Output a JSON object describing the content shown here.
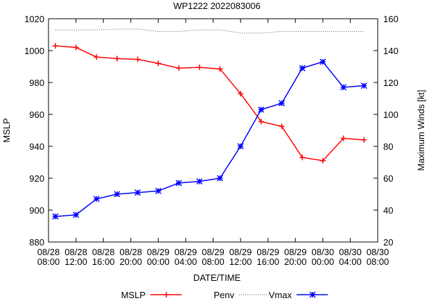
{
  "chart_data": {
    "type": "line",
    "title": "WP1222 2022083006",
    "x_label": "DATE/TIME",
    "y_label": "MSLP",
    "y2_label": "Maximum Winds [kt]",
    "x": [
      "08/28 09:00",
      "08/28 12:00",
      "08/28 15:00",
      "08/28 18:00",
      "08/28 21:00",
      "08/29 00:00",
      "08/29 03:00",
      "08/29 06:00",
      "08/29 09:00",
      "08/29 12:00",
      "08/29 15:00",
      "08/29 18:00",
      "08/29 21:00",
      "08/30 00:00",
      "08/30 03:00",
      "08/30 06:00"
    ],
    "xlim": [
      "08/28 08:00",
      "08/30 08:00"
    ],
    "xticks": [
      "08/28 08:00",
      "08/28 12:00",
      "08/28 16:00",
      "08/28 20:00",
      "08/29 00:00",
      "08/29 04:00",
      "08/29 08:00",
      "08/29 12:00",
      "08/29 16:00",
      "08/29 20:00",
      "08/30 00:00",
      "08/30 04:00",
      "08/30 08:00"
    ],
    "ylim": [
      880,
      1020
    ],
    "yticks": [
      880,
      900,
      920,
      940,
      960,
      980,
      1000,
      1020
    ],
    "y2lim": [
      20,
      160
    ],
    "y2ticks": [
      20,
      40,
      60,
      80,
      100,
      120,
      140,
      160
    ],
    "series": [
      {
        "name": "MSLP",
        "color": "#ff0000",
        "marker": "plus",
        "values": [
          1003,
          1002,
          996,
          995,
          994.5,
          992,
          989,
          989.5,
          988.5,
          973,
          955.5,
          952.5,
          933,
          931,
          945,
          944
        ]
      },
      {
        "name": "Penv",
        "color": "#555555",
        "dashed": true,
        "values": [
          1013,
          1013,
          1013,
          1013.5,
          1013.5,
          1012,
          1012,
          1013,
          1013,
          1011,
          1011,
          1012,
          1012,
          1012,
          1012,
          1012
        ]
      },
      {
        "name": "Vmax",
        "color": "#0000ff",
        "marker": "star",
        "axis": "y2",
        "values": [
          36,
          37,
          47,
          50,
          51,
          52,
          57,
          58,
          60,
          80,
          103,
          107,
          129,
          133,
          117,
          118
        ]
      }
    ]
  }
}
